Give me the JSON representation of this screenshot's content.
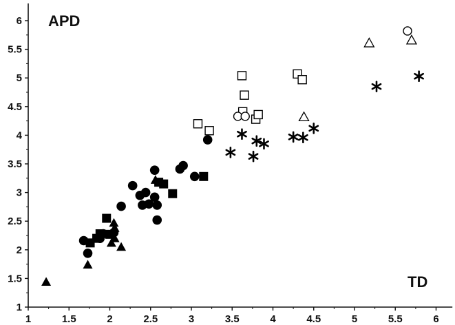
{
  "chart_data": {
    "type": "scatter",
    "title": "",
    "xlabel": "TD",
    "ylabel": "APD",
    "xlim": [
      1,
      6.2
    ],
    "ylim": [
      1,
      6.3
    ],
    "x_ticks": [
      1,
      1.5,
      2,
      2.5,
      3,
      3.5,
      4,
      4.5,
      5,
      5.5,
      6
    ],
    "y_ticks": [
      1,
      1.5,
      2,
      2.5,
      3,
      3.5,
      4,
      4.5,
      5,
      5.5,
      6
    ],
    "grid": false,
    "legend": "none",
    "series": [
      {
        "marker": "filled-circle",
        "color": "#000000",
        "points": [
          [
            1.68,
            2.16
          ],
          [
            1.73,
            1.94
          ],
          [
            1.88,
            2.2
          ],
          [
            1.92,
            2.28
          ],
          [
            2.05,
            2.3
          ],
          [
            2.14,
            2.76
          ],
          [
            2.28,
            3.12
          ],
          [
            2.37,
            2.95
          ],
          [
            2.4,
            2.78
          ],
          [
            2.44,
            3.0
          ],
          [
            2.48,
            2.8
          ],
          [
            2.55,
            3.39
          ],
          [
            2.55,
            2.92
          ],
          [
            2.58,
            2.78
          ],
          [
            2.58,
            2.52
          ],
          [
            2.86,
            3.41
          ],
          [
            2.9,
            3.47
          ],
          [
            3.04,
            3.28
          ],
          [
            3.2,
            3.92
          ]
        ]
      },
      {
        "marker": "filled-square",
        "color": "#000000",
        "points": [
          [
            1.76,
            2.12
          ],
          [
            1.84,
            2.2
          ],
          [
            1.88,
            2.28
          ],
          [
            1.96,
            2.55
          ],
          [
            2.0,
            2.27
          ],
          [
            2.6,
            3.18
          ],
          [
            2.66,
            3.15
          ],
          [
            2.77,
            2.98
          ],
          [
            3.15,
            3.28
          ]
        ]
      },
      {
        "marker": "filled-triangle",
        "color": "#000000",
        "points": [
          [
            1.22,
            1.44
          ],
          [
            1.73,
            1.74
          ],
          [
            2.02,
            2.12
          ],
          [
            2.05,
            2.47
          ],
          [
            2.06,
            2.38
          ],
          [
            2.06,
            2.2
          ],
          [
            2.14,
            2.05
          ],
          [
            2.56,
            3.22
          ]
        ]
      },
      {
        "marker": "asterisk",
        "color": "#000000",
        "points": [
          [
            3.48,
            3.7
          ],
          [
            3.62,
            4.02
          ],
          [
            3.76,
            3.63
          ],
          [
            3.8,
            3.9
          ],
          [
            3.89,
            3.85
          ],
          [
            4.25,
            3.97
          ],
          [
            4.37,
            3.96
          ],
          [
            4.5,
            4.12
          ],
          [
            5.27,
            4.85
          ],
          [
            5.79,
            5.03
          ]
        ]
      },
      {
        "marker": "open-square",
        "color": "#000000",
        "points": [
          [
            3.08,
            4.2
          ],
          [
            3.22,
            4.08
          ],
          [
            3.62,
            5.04
          ],
          [
            3.63,
            4.41
          ],
          [
            3.65,
            4.7
          ],
          [
            3.79,
            4.28
          ],
          [
            3.82,
            4.36
          ],
          [
            4.3,
            5.07
          ],
          [
            4.36,
            4.97
          ]
        ]
      },
      {
        "marker": "open-circle",
        "color": "#000000",
        "points": [
          [
            3.57,
            4.33
          ],
          [
            3.66,
            4.33
          ],
          [
            5.65,
            5.82
          ]
        ]
      },
      {
        "marker": "open-triangle",
        "color": "#000000",
        "points": [
          [
            4.38,
            4.32
          ],
          [
            5.18,
            5.61
          ],
          [
            5.7,
            5.66
          ]
        ]
      }
    ]
  }
}
